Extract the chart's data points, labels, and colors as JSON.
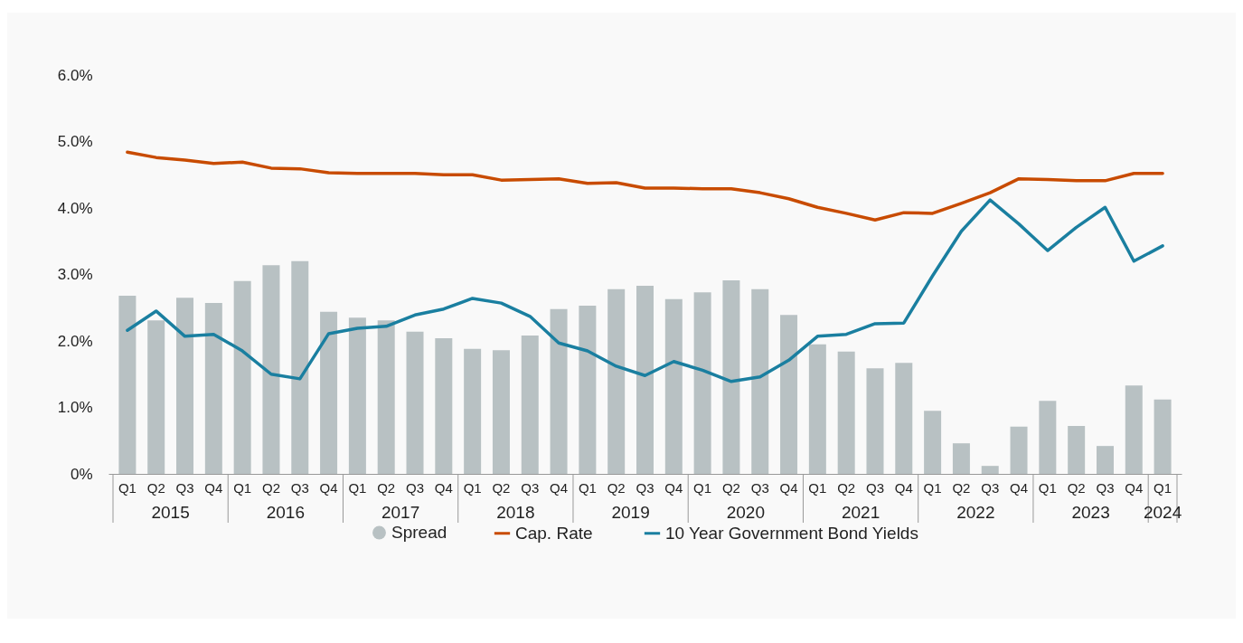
{
  "chart_data": {
    "type": "bar",
    "categories": [
      "Q1",
      "Q2",
      "Q3",
      "Q4",
      "Q1",
      "Q2",
      "Q3",
      "Q4",
      "Q1",
      "Q2",
      "Q3",
      "Q4",
      "Q1",
      "Q2",
      "Q3",
      "Q4",
      "Q1",
      "Q2",
      "Q3",
      "Q4",
      "Q1",
      "Q2",
      "Q3",
      "Q4",
      "Q1",
      "Q2",
      "Q3",
      "Q4",
      "Q1",
      "Q2",
      "Q3",
      "Q4",
      "Q1",
      "Q2",
      "Q3",
      "Q4",
      "Q1"
    ],
    "annotations": [
      "2015",
      "2016",
      "2017",
      "2018",
      "2019",
      "2020",
      "2021",
      "2022",
      "2023",
      "2024"
    ],
    "series": [
      {
        "name": "Spread",
        "color": "#b8c1c3",
        "values": [
          2.68,
          2.31,
          2.65,
          2.57,
          2.9,
          3.14,
          3.2,
          2.44,
          2.35,
          2.31,
          2.14,
          2.04,
          1.88,
          1.86,
          2.08,
          2.48,
          2.53,
          2.78,
          2.83,
          2.63,
          2.73,
          2.91,
          2.78,
          2.39,
          1.95,
          1.84,
          1.59,
          1.67,
          0.95,
          0.46,
          0.12,
          0.71,
          1.1,
          0.72,
          0.42,
          1.33,
          1.12
        ]
      },
      {
        "name": "Cap. Rate",
        "type": "line",
        "color": "#c84b00",
        "values": [
          4.84,
          4.76,
          4.72,
          4.67,
          4.69,
          4.6,
          4.59,
          4.53,
          4.52,
          4.52,
          4.52,
          4.5,
          4.5,
          4.42,
          4.43,
          4.44,
          4.37,
          4.38,
          4.3,
          4.3,
          4.29,
          4.29,
          4.23,
          4.14,
          4.01,
          3.92,
          3.82,
          3.93,
          3.92,
          4.07,
          4.23,
          4.44,
          4.43,
          4.41,
          4.41,
          4.52,
          4.52
        ]
      },
      {
        "name": "10 Year Government Bond Yields",
        "type": "line",
        "color": "#1a7fa0",
        "values": [
          2.16,
          2.45,
          2.07,
          2.1,
          1.85,
          1.5,
          1.43,
          2.11,
          2.19,
          2.22,
          2.39,
          2.48,
          2.64,
          2.57,
          2.37,
          1.97,
          1.85,
          1.62,
          1.48,
          1.69,
          1.56,
          1.39,
          1.46,
          1.71,
          2.07,
          2.1,
          2.26,
          2.27,
          2.98,
          3.65,
          4.12,
          3.76,
          3.36,
          3.71,
          4.01,
          3.2,
          3.43
        ]
      }
    ],
    "ylim": [
      0,
      6
    ],
    "yticks": [
      {
        "value": 0,
        "label": "0%"
      },
      {
        "value": 1,
        "label": "1.0%"
      },
      {
        "value": 2,
        "label": "2.0%"
      },
      {
        "value": 3,
        "label": "3.0%"
      },
      {
        "value": 4,
        "label": "4.0%"
      },
      {
        "value": 5,
        "label": "5.0%"
      },
      {
        "value": 6,
        "label": "6.0%"
      }
    ],
    "grid": false,
    "legend": "bottom"
  }
}
